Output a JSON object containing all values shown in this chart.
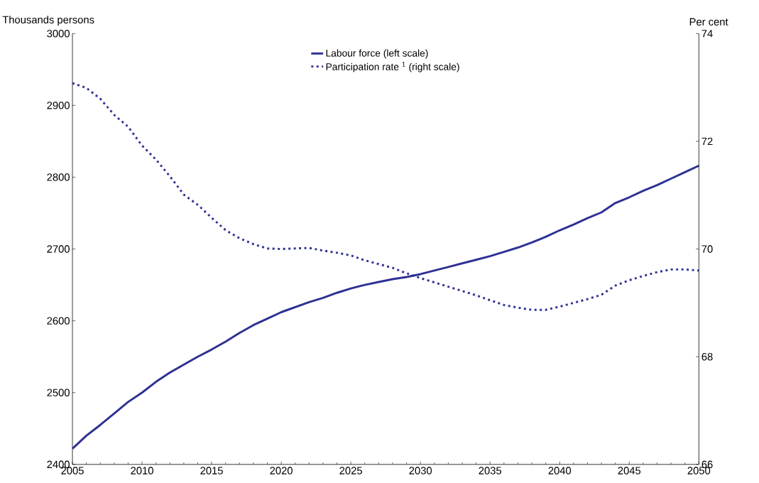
{
  "chart_data": {
    "type": "line",
    "ylabel": "Thousands persons",
    "y2label": "Per cent",
    "x": [
      2005,
      2006,
      2007,
      2008,
      2009,
      2010,
      2011,
      2012,
      2013,
      2014,
      2015,
      2016,
      2017,
      2018,
      2019,
      2020,
      2021,
      2022,
      2023,
      2024,
      2025,
      2026,
      2027,
      2028,
      2029,
      2030,
      2031,
      2032,
      2033,
      2034,
      2035,
      2036,
      2037,
      2038,
      2039,
      2040,
      2041,
      2042,
      2043,
      2044,
      2045,
      2046,
      2047,
      2048,
      2049,
      2050
    ],
    "xlim": [
      2005,
      2050
    ],
    "xticks": [
      2005,
      2010,
      2015,
      2020,
      2025,
      2030,
      2035,
      2040,
      2045,
      2050
    ],
    "ylim": [
      2400,
      3000
    ],
    "yticks": [
      2400,
      2500,
      2600,
      2700,
      2800,
      2900,
      3000
    ],
    "y2lim": [
      66,
      74
    ],
    "y2ticks": [
      66,
      68,
      70,
      72,
      74
    ],
    "series": [
      {
        "name": "Labour force (left scale)",
        "color": "#2e3192",
        "line_style": "solid",
        "values": [
          2422,
          2440,
          2455,
          2471,
          2487,
          2500,
          2515,
          2528,
          2539,
          2550,
          2560,
          2571,
          2583,
          2594,
          2603,
          2612,
          2619,
          2626,
          2632,
          2639,
          2645,
          2650,
          2654,
          2658,
          2661,
          2665,
          2670,
          2675,
          2680,
          2685,
          2690,
          2696,
          2702,
          2709,
          2717,
          2726,
          2734,
          2743,
          2751,
          2764,
          2772,
          2781,
          2789,
          2798,
          2807,
          2816
        ]
      },
      {
        "name": "Participation rate $^{1}$ (right scale)",
        "color": "#2e3192",
        "line_style": "dotted",
        "axis": "y2",
        "values": [
          73.08,
          72.99,
          72.79,
          72.49,
          72.27,
          71.92,
          71.66,
          71.35,
          71.01,
          70.82,
          70.58,
          70.35,
          70.2,
          70.09,
          70.01,
          70.0,
          70.01,
          70.02,
          69.97,
          69.93,
          69.88,
          69.79,
          69.72,
          69.65,
          69.55,
          69.46,
          69.38,
          69.3,
          69.22,
          69.14,
          69.05,
          68.96,
          68.91,
          68.87,
          68.87,
          68.93,
          69.0,
          69.07,
          69.15,
          69.32,
          69.42,
          69.5,
          69.57,
          69.62,
          69.62,
          69.6
        ]
      }
    ],
    "legend": "top",
    "grid": false,
    "marker": "none"
  }
}
